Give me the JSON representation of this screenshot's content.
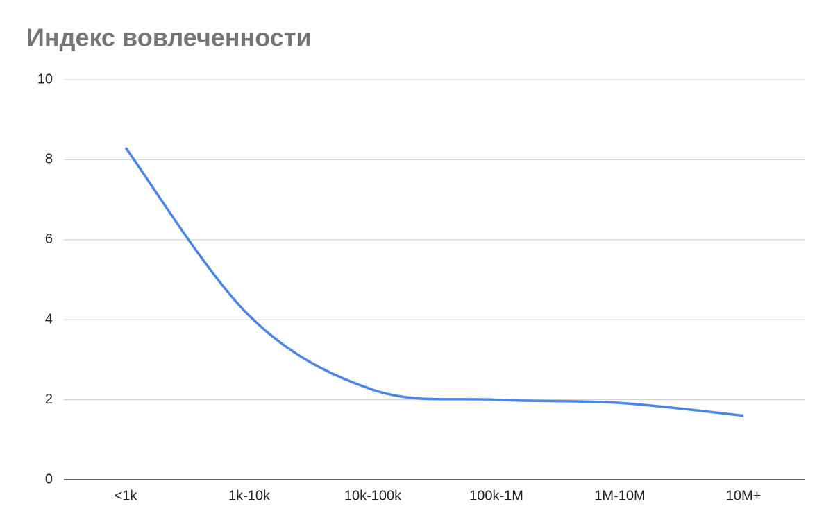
{
  "chart_data": {
    "type": "line",
    "title": "Индекс вовлеченности",
    "categories": [
      "<1k",
      "1k-10k",
      "10k-100k",
      "100k-1M",
      "1M-10M",
      "10M+"
    ],
    "values": [
      8.3,
      4.1,
      2.25,
      2.0,
      1.92,
      1.6
    ],
    "color": "#4a86e8",
    "smooth": true,
    "ylim": [
      0,
      10
    ],
    "yticks": [
      0,
      2,
      4,
      6,
      8,
      10
    ],
    "grid": true
  }
}
